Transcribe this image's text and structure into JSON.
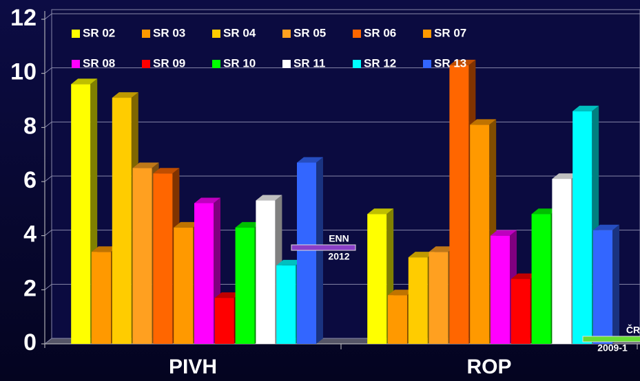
{
  "chart_data": {
    "type": "bar3d",
    "categories": [
      "PIVH",
      "ROP"
    ],
    "series": [
      {
        "name": "SR 02",
        "color": "#ffff00",
        "values": [
          9.6,
          4.8
        ]
      },
      {
        "name": "SR 03",
        "color": "#ff9900",
        "values": [
          3.4,
          1.8
        ]
      },
      {
        "name": "SR 04",
        "color": "#ffcc00",
        "values": [
          9.1,
          3.2
        ]
      },
      {
        "name": "SR 05",
        "color": "#ffa020",
        "values": [
          6.5,
          3.4
        ]
      },
      {
        "name": "SR 06",
        "color": "#ff6600",
        "values": [
          6.3,
          10.3
        ]
      },
      {
        "name": "SR 07",
        "color": "#ff9900",
        "values": [
          4.3,
          8.1
        ]
      },
      {
        "name": "SR 08",
        "color": "#ff00ff",
        "values": [
          5.2,
          4.0
        ]
      },
      {
        "name": "SR 09",
        "color": "#ff0000",
        "values": [
          1.7,
          2.4
        ]
      },
      {
        "name": "SR 10",
        "color": "#00ff00",
        "values": [
          4.3,
          4.8
        ]
      },
      {
        "name": "SR 11",
        "color": "#ffffff",
        "values": [
          5.3,
          6.1
        ]
      },
      {
        "name": "SR 12",
        "color": "#00ffff",
        "values": [
          2.9,
          8.6
        ]
      },
      {
        "name": "SR 13",
        "color": "#3366ff",
        "values": [
          6.7,
          4.2
        ]
      }
    ],
    "ylim": [
      0,
      12
    ],
    "yticks": [
      0,
      2,
      4,
      6,
      8,
      10,
      12
    ],
    "grid": true,
    "annotations": [
      {
        "lines": [
          "ENN",
          "2012"
        ],
        "color": "#8a3fc8"
      },
      {
        "lines": [
          "ČR",
          "2009-1"
        ],
        "color": "#66dd33"
      }
    ]
  }
}
